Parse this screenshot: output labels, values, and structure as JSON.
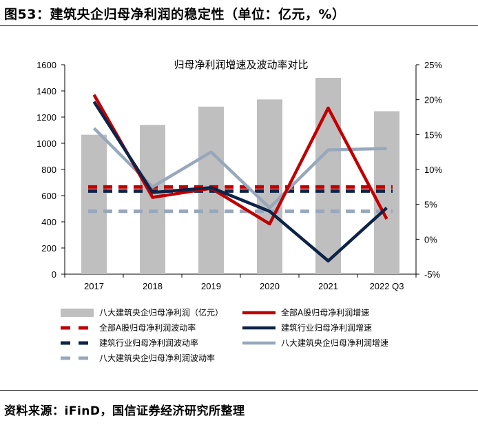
{
  "figure": {
    "title": "图53：建筑央企归母净利润的稳定性（单位：亿元，%）",
    "source": "资料来源：iFinD，国信证券经济研究所整理"
  },
  "chart_data": {
    "type": "bar+line",
    "title": "归母净利润增速及波动率对比",
    "categories": [
      "2017",
      "2018",
      "2019",
      "2020",
      "2021",
      "2022 Q3"
    ],
    "y_left": {
      "range": [
        0,
        1600
      ],
      "ticks": [
        "0",
        "200",
        "400",
        "600",
        "800",
        "1000",
        "1200",
        "1400",
        "1600"
      ]
    },
    "y_right": {
      "range": [
        -5,
        25
      ],
      "ticks": [
        "-5%",
        "0%",
        "5%",
        "10%",
        "15%",
        "20%",
        "25%"
      ]
    },
    "bars": {
      "name": "八大建筑央企归母净利润（亿元）",
      "axis": "left",
      "values": [
        1065,
        1140,
        1280,
        1335,
        1500,
        1245
      ],
      "color": "#bfbfbf"
    },
    "lines": [
      {
        "name": "全部A股归母净利润增速",
        "axis": "right",
        "style": "solid",
        "color": "#c00000",
        "values": [
          20.7,
          6.0,
          7.3,
          2.2,
          18.8,
          2.9
        ]
      },
      {
        "name": "建筑行业归母净利润增速",
        "axis": "right",
        "style": "solid",
        "color": "#0d2348",
        "values": [
          19.7,
          6.7,
          7.4,
          4.0,
          -3.1,
          4.5
        ]
      },
      {
        "name": "八大建筑央企归母净利润增速",
        "axis": "right",
        "style": "solid",
        "color": "#97a8bd",
        "values": [
          15.9,
          7.5,
          12.5,
          4.5,
          12.8,
          13.0
        ]
      },
      {
        "name": "全部A股归母净利润波动率",
        "axis": "right",
        "style": "dashed",
        "color": "#c00000",
        "values": [
          7.5,
          7.5,
          7.5,
          7.5,
          7.5,
          7.5
        ]
      },
      {
        "name": "建筑行业归母净利润波动率",
        "axis": "right",
        "style": "dashed",
        "color": "#0d2348",
        "values": [
          6.9,
          6.9,
          6.9,
          6.9,
          6.9,
          6.9
        ]
      },
      {
        "name": "八大建筑央企归母净利润波动率",
        "axis": "right",
        "style": "dashed",
        "color": "#97a8bd",
        "values": [
          4.0,
          4.0,
          4.0,
          4.0,
          4.0,
          4.0
        ]
      }
    ],
    "legend": {
      "placement": "bottom",
      "items": [
        {
          "ref": "bar",
          "label": "八大建筑央企归母净利润（亿元）"
        },
        {
          "ref": 0,
          "label": "全部A股归母净利润增速"
        },
        {
          "ref": 3,
          "label": "全部A股归母净利润波动率"
        },
        {
          "ref": 1,
          "label": "建筑行业归母净利润增速"
        },
        {
          "ref": 4,
          "label": "建筑行业归母净利润波动率"
        },
        {
          "ref": 2,
          "label": "八大建筑央企归母净利润增速"
        },
        {
          "ref": 5,
          "label": "八大建筑央企归母净利润波动率"
        }
      ]
    }
  }
}
